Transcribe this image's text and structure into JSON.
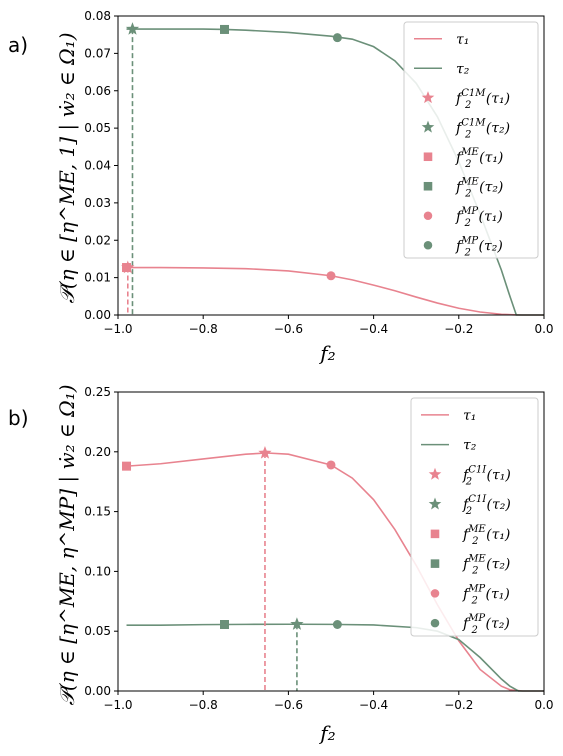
{
  "chart_data": [
    {
      "type": "line",
      "panel_label": "a)",
      "xlabel": "f₂",
      "ylabel": "𝒫(η ∈ [η^ME, 1] | ẇ₂ ∈ Ω₁)",
      "xlim": [
        -1.0,
        0.0
      ],
      "ylim": [
        0.0,
        0.08
      ],
      "xticks": [
        "−1.0",
        "−0.8",
        "−0.6",
        "−0.4",
        "−0.2",
        "0.0"
      ],
      "yticks": [
        "0.00",
        "0.01",
        "0.02",
        "0.03",
        "0.04",
        "0.05",
        "0.06",
        "0.07",
        "0.08"
      ],
      "legend_position": "top-right",
      "series": [
        {
          "name": "τ₁",
          "color": "#e8838f",
          "x": [
            -0.98,
            -0.9,
            -0.8,
            -0.7,
            -0.6,
            -0.5,
            -0.45,
            -0.4,
            -0.35,
            -0.3,
            -0.25,
            -0.2,
            -0.15,
            -0.1,
            -0.07,
            -0.05,
            -0.02,
            0.0
          ],
          "y": [
            0.0127,
            0.0127,
            0.0126,
            0.0124,
            0.0118,
            0.0105,
            0.0094,
            0.008,
            0.0065,
            0.0048,
            0.0032,
            0.0018,
            0.0008,
            0.0002,
            5e-05,
            0.0,
            0.0,
            0.0
          ]
        },
        {
          "name": "τ₂",
          "color": "#6b9079",
          "x": [
            -0.98,
            -0.9,
            -0.8,
            -0.75,
            -0.7,
            -0.6,
            -0.5,
            -0.45,
            -0.4,
            -0.35,
            -0.3,
            -0.25,
            -0.2,
            -0.15,
            -0.1,
            -0.08,
            -0.065,
            -0.05,
            0.0
          ],
          "y": [
            0.0765,
            0.0765,
            0.0765,
            0.0764,
            0.0762,
            0.0756,
            0.0746,
            0.0738,
            0.0718,
            0.068,
            0.062,
            0.053,
            0.041,
            0.027,
            0.012,
            0.005,
            0.0,
            0.0,
            0.0
          ]
        }
      ],
      "markers": [
        {
          "label_base": "f",
          "label_sup": "C1M",
          "label_sub": "2",
          "label_arg": "(τ₁)",
          "shape": "star",
          "color": "#e8838f",
          "x": -0.977,
          "y": 0.0127,
          "dashed_drop": true
        },
        {
          "label_base": "f",
          "label_sup": "C1M",
          "label_sub": "2",
          "label_arg": "(τ₂)",
          "shape": "star",
          "color": "#6b9079",
          "x": -0.966,
          "y": 0.0765,
          "dashed_drop": true
        },
        {
          "label_base": "f",
          "label_sup": "ME",
          "label_sub": "2",
          "label_arg": "(τ₁)",
          "shape": "square",
          "color": "#e8838f",
          "x": -0.98,
          "y": 0.0127,
          "dashed_drop": false
        },
        {
          "label_base": "f",
          "label_sup": "ME",
          "label_sub": "2",
          "label_arg": "(τ₂)",
          "shape": "square",
          "color": "#6b9079",
          "x": -0.75,
          "y": 0.0764,
          "dashed_drop": false
        },
        {
          "label_base": "f",
          "label_sup": "MP",
          "label_sub": "2",
          "label_arg": "(τ₁)",
          "shape": "circle",
          "color": "#e8838f",
          "x": -0.5,
          "y": 0.0105,
          "dashed_drop": false
        },
        {
          "label_base": "f",
          "label_sup": "MP",
          "label_sub": "2",
          "label_arg": "(τ₂)",
          "shape": "circle",
          "color": "#6b9079",
          "x": -0.485,
          "y": 0.0742,
          "dashed_drop": false
        }
      ]
    },
    {
      "type": "line",
      "panel_label": "b)",
      "xlabel": "f₂",
      "ylabel": "𝒫(η ∈ [η^ME, η^MP] | ẇ₂ ∈ Ω₁)",
      "xlim": [
        -1.0,
        0.0
      ],
      "ylim": [
        0.0,
        0.25
      ],
      "xticks": [
        "−1.0",
        "−0.8",
        "−0.6",
        "−0.4",
        "−0.2",
        "0.0"
      ],
      "yticks": [
        "0.00",
        "0.05",
        "0.10",
        "0.15",
        "0.20",
        "0.25"
      ],
      "legend_position": "top-right",
      "series": [
        {
          "name": "τ₁",
          "color": "#e8838f",
          "x": [
            -0.98,
            -0.9,
            -0.8,
            -0.7,
            -0.65,
            -0.6,
            -0.5,
            -0.45,
            -0.4,
            -0.35,
            -0.3,
            -0.25,
            -0.2,
            -0.15,
            -0.1,
            -0.08,
            -0.05,
            0.0
          ],
          "y": [
            0.188,
            0.19,
            0.194,
            0.198,
            0.199,
            0.198,
            0.189,
            0.178,
            0.16,
            0.135,
            0.105,
            0.072,
            0.042,
            0.018,
            0.004,
            0.001,
            0.0,
            0.0
          ]
        },
        {
          "name": "τ₂",
          "color": "#6b9079",
          "x": [
            -0.98,
            -0.9,
            -0.8,
            -0.75,
            -0.7,
            -0.6,
            -0.58,
            -0.5,
            -0.48,
            -0.4,
            -0.3,
            -0.25,
            -0.2,
            -0.15,
            -0.1,
            -0.08,
            -0.06,
            0.0
          ],
          "y": [
            0.055,
            0.055,
            0.0555,
            0.0556,
            0.0557,
            0.0558,
            0.0558,
            0.0557,
            0.0556,
            0.0552,
            0.053,
            0.05,
            0.043,
            0.028,
            0.01,
            0.004,
            0.0,
            0.0
          ]
        }
      ],
      "markers": [
        {
          "label_base": "f",
          "label_sup": "C1I",
          "label_sub": "2",
          "label_arg": "(τ₁)",
          "shape": "star",
          "color": "#e8838f",
          "x": -0.655,
          "y": 0.199,
          "dashed_drop": true
        },
        {
          "label_base": "f",
          "label_sup": "C1I",
          "label_sub": "2",
          "label_arg": "(τ₂)",
          "shape": "star",
          "color": "#6b9079",
          "x": -0.58,
          "y": 0.0558,
          "dashed_drop": true
        },
        {
          "label_base": "f",
          "label_sup": "ME",
          "label_sub": "2",
          "label_arg": "(τ₁)",
          "shape": "square",
          "color": "#e8838f",
          "x": -0.98,
          "y": 0.188,
          "dashed_drop": false
        },
        {
          "label_base": "f",
          "label_sup": "ME",
          "label_sub": "2",
          "label_arg": "(τ₂)",
          "shape": "square",
          "color": "#6b9079",
          "x": -0.75,
          "y": 0.0556,
          "dashed_drop": false
        },
        {
          "label_base": "f",
          "label_sup": "MP",
          "label_sub": "2",
          "label_arg": "(τ₁)",
          "shape": "circle",
          "color": "#e8838f",
          "x": -0.5,
          "y": 0.189,
          "dashed_drop": false
        },
        {
          "label_base": "f",
          "label_sup": "MP",
          "label_sub": "2",
          "label_arg": "(τ₂)",
          "shape": "circle",
          "color": "#6b9079",
          "x": -0.485,
          "y": 0.0556,
          "dashed_drop": false
        }
      ]
    }
  ]
}
